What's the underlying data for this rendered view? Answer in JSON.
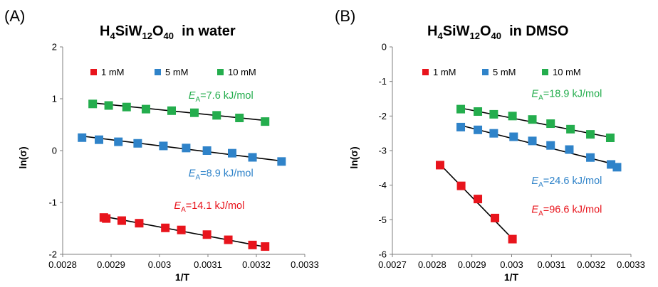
{
  "chart_data": [
    {
      "type": "scatter",
      "panel_label": "(A)",
      "title": {
        "pre": "H",
        "s1": "4",
        "mid1": "SiW",
        "s2": "12",
        "mid2": "O",
        "s3": "40",
        "post": "  in water"
      },
      "xlabel": "1/T",
      "ylabel": "ln(σ)",
      "xlim": [
        0.0028,
        0.0033
      ],
      "ylim": [
        -2,
        2
      ],
      "xticks": [
        "0.0028",
        "0.0029",
        "0.003",
        "0.0031",
        "0.0032",
        "0.0033"
      ],
      "yticks": [
        "-2",
        "-1",
        "0",
        "1",
        "2"
      ],
      "legend_position": "top",
      "series": [
        {
          "name": "1 mM",
          "color": "#e8141c",
          "x": [
            0.002885,
            0.00289,
            0.002922,
            0.002958,
            0.003012,
            0.003045,
            0.003098,
            0.003142,
            0.003192,
            0.003218
          ],
          "y": [
            -1.29,
            -1.31,
            -1.35,
            -1.4,
            -1.49,
            -1.53,
            -1.62,
            -1.72,
            -1.82,
            -1.85
          ],
          "fit": {
            "x": [
              0.002885,
              0.00322
            ],
            "y": [
              -1.27,
              -1.86
            ]
          },
          "annotation": {
            "E": "E",
            "sub": "A",
            "text": "=14.1 kJ/mol",
            "x": 0.00303,
            "y": -1.12
          }
        },
        {
          "name": "5 mM",
          "color": "#2f83c9",
          "x": [
            0.00284,
            0.002875,
            0.002915,
            0.002955,
            0.003008,
            0.003055,
            0.003098,
            0.00315,
            0.003192,
            0.003252
          ],
          "y": [
            0.25,
            0.21,
            0.17,
            0.14,
            0.09,
            0.05,
            0.0,
            -0.05,
            -0.13,
            -0.21
          ],
          "fit": {
            "x": [
              0.00284,
              0.003252
            ],
            "y": [
              0.28,
              -0.2
            ]
          },
          "annotation": {
            "E": "E",
            "sub": "A",
            "text": "=8.9 kJ/mol",
            "x": 0.00306,
            "y": -0.5
          }
        },
        {
          "name": "10 mM",
          "color": "#24ad4d",
          "x": [
            0.002862,
            0.002895,
            0.002932,
            0.002972,
            0.003025,
            0.003072,
            0.003118,
            0.003165,
            0.003218
          ],
          "y": [
            0.9,
            0.87,
            0.84,
            0.8,
            0.77,
            0.73,
            0.68,
            0.63,
            0.56
          ],
          "fit": {
            "x": [
              0.002862,
              0.00322
            ],
            "y": [
              0.92,
              0.58
            ]
          },
          "annotation": {
            "E": "E",
            "sub": "A",
            "text": "=7.6 kJ/mol",
            "x": 0.00306,
            "y": 1.0
          }
        }
      ]
    },
    {
      "type": "scatter",
      "panel_label": "(B)",
      "title": {
        "pre": "H",
        "s1": "4",
        "mid1": "SiW",
        "s2": "12",
        "mid2": "O",
        "s3": "40",
        "post": "  in DMSO"
      },
      "xlabel": "1/T",
      "ylabel": "ln(σ)",
      "xlim": [
        0.0027,
        0.0033
      ],
      "ylim": [
        -6,
        0
      ],
      "xticks": [
        "0.0027",
        "0.0028",
        "0.0029",
        "0.003",
        "0.0031",
        "0.0032",
        "0.0033"
      ],
      "yticks": [
        "-6",
        "-5",
        "-4",
        "-3",
        "-2",
        "-1",
        "0"
      ],
      "legend_position": "top",
      "series": [
        {
          "name": "1 mM",
          "color": "#e8141c",
          "x": [
            0.00282,
            0.002873,
            0.002915,
            0.002958,
            0.003002
          ],
          "y": [
            -3.42,
            -4.02,
            -4.4,
            -4.95,
            -5.56
          ],
          "fit": {
            "x": [
              0.00282,
              0.003002
            ],
            "y": [
              -3.4,
              -5.55
            ]
          },
          "annotation": {
            "E": "E",
            "sub": "A",
            "text": "=96.6 kJ/mol",
            "x": 0.00305,
            "y": -4.8
          }
        },
        {
          "name": "5 mM",
          "color": "#2f83c9",
          "x": [
            0.002872,
            0.002915,
            0.002955,
            0.003005,
            0.003052,
            0.003098,
            0.003145,
            0.003198,
            0.00325,
            0.003265
          ],
          "y": [
            -2.32,
            -2.4,
            -2.5,
            -2.6,
            -2.72,
            -2.85,
            -2.97,
            -3.2,
            -3.4,
            -3.48
          ],
          "fit": {
            "x": [
              0.002872,
              0.00327
            ],
            "y": [
              -2.27,
              -3.43
            ]
          },
          "annotation": {
            "E": "E",
            "sub": "A",
            "text": "=24.6 kJ/mol",
            "x": 0.00305,
            "y": -3.97
          }
        },
        {
          "name": "10 mM",
          "color": "#24ad4d",
          "x": [
            0.002872,
            0.002915,
            0.002955,
            0.003002,
            0.003052,
            0.003098,
            0.003148,
            0.003198,
            0.003248
          ],
          "y": [
            -1.8,
            -1.87,
            -1.95,
            -2.0,
            -2.1,
            -2.22,
            -2.38,
            -2.53,
            -2.63
          ],
          "fit": {
            "x": [
              0.002872,
              0.00325
            ],
            "y": [
              -1.77,
              -2.62
            ]
          },
          "annotation": {
            "E": "E",
            "sub": "A",
            "text": "=18.9 kJ/mol",
            "x": 0.00305,
            "y": -1.45
          }
        }
      ]
    }
  ]
}
